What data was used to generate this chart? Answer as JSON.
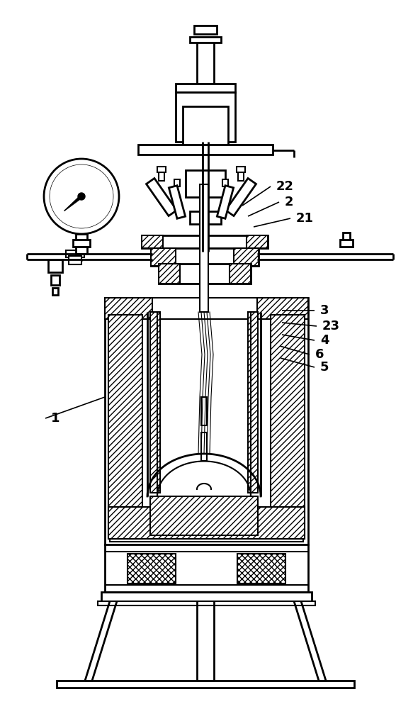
{
  "bg_color": "#ffffff",
  "line_color": "#000000",
  "lw": 1.5,
  "lw2": 2.0,
  "annotations": [
    [
      "22",
      390,
      263,
      342,
      290
    ],
    [
      "2",
      402,
      285,
      350,
      305
    ],
    [
      "21",
      418,
      308,
      358,
      320
    ],
    [
      "3",
      452,
      438,
      398,
      438
    ],
    [
      "23",
      455,
      460,
      398,
      455
    ],
    [
      "4",
      452,
      480,
      398,
      472
    ],
    [
      "6",
      445,
      500,
      395,
      488
    ],
    [
      "5",
      452,
      518,
      396,
      505
    ],
    [
      "1",
      72,
      590,
      148,
      560
    ]
  ]
}
